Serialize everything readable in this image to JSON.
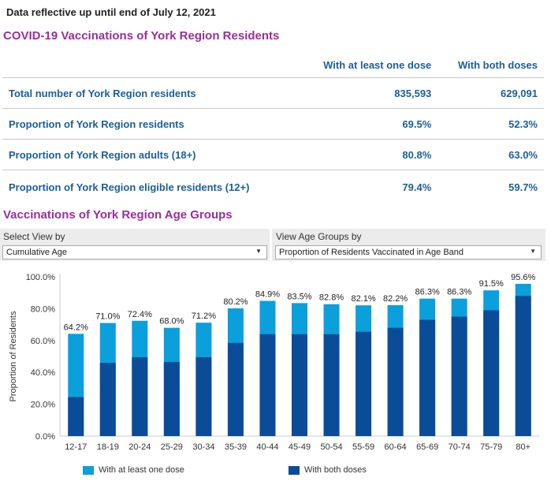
{
  "note": "Data reflective up until end of July 12, 2021",
  "title1": "COVID-19 Vaccinations of York Region Residents",
  "table": {
    "headers": [
      "",
      "With at least one dose",
      "With both doses"
    ],
    "rows": [
      {
        "label": "Total number of York Region residents",
        "one_dose": "835,593",
        "both": "629,091"
      },
      {
        "label": "Proportion of York Region residents",
        "one_dose": "69.5%",
        "both": "52.3%"
      },
      {
        "label": "Proportion of York Region adults (18+)",
        "one_dose": "80.8%",
        "both": "63.0%"
      },
      {
        "label": "Proportion of York Region eligible residents (12+)",
        "one_dose": "79.4%",
        "both": "59.7%"
      }
    ]
  },
  "title2": "Vaccinations of York Region Age Groups",
  "controls": {
    "view_label": "Select View by",
    "view_value": "Cumulative Age",
    "age_label": "View Age Groups by",
    "age_value": "Proportion of Residents Vaccinated in Age Band"
  },
  "colors": {
    "one_dose": "#0b9fdc",
    "both": "#0a4c97",
    "title": "#9b2d9b",
    "table_text": "#1a5e9a"
  },
  "chart_data": {
    "type": "bar",
    "ylabel": "Proportion of Residents",
    "ylim": [
      0,
      100
    ],
    "yticks": [
      "0.0%",
      "20.0%",
      "40.0%",
      "60.0%",
      "80.0%",
      "100.0%"
    ],
    "categories": [
      "12-17",
      "18-19",
      "20-24",
      "25-29",
      "30-34",
      "35-39",
      "40-44",
      "45-49",
      "50-54",
      "55-59",
      "60-64",
      "65-69",
      "70-74",
      "75-79",
      "80+"
    ],
    "series": [
      {
        "name": "With at least one dose",
        "values": [
          64.2,
          71.0,
          72.4,
          68.0,
          71.2,
          80.2,
          84.9,
          83.5,
          82.8,
          82.1,
          82.2,
          86.3,
          86.3,
          91.5,
          95.6
        ]
      },
      {
        "name": "With both doses",
        "values": [
          24.5,
          46.0,
          49.5,
          46.5,
          49.5,
          58.5,
          64.0,
          64.0,
          64.0,
          65.5,
          68.0,
          73.0,
          75.0,
          79.0,
          88.0
        ]
      }
    ],
    "data_labels": [
      "64.2%",
      "71.0%",
      "72.4%",
      "68.0%",
      "71.2%",
      "80.2%",
      "84.9%",
      "83.5%",
      "82.8%",
      "82.1%",
      "82.2%",
      "86.3%",
      "86.3%",
      "91.5%",
      "95.6%"
    ],
    "legend": [
      "With at least one dose",
      "With both doses"
    ]
  }
}
